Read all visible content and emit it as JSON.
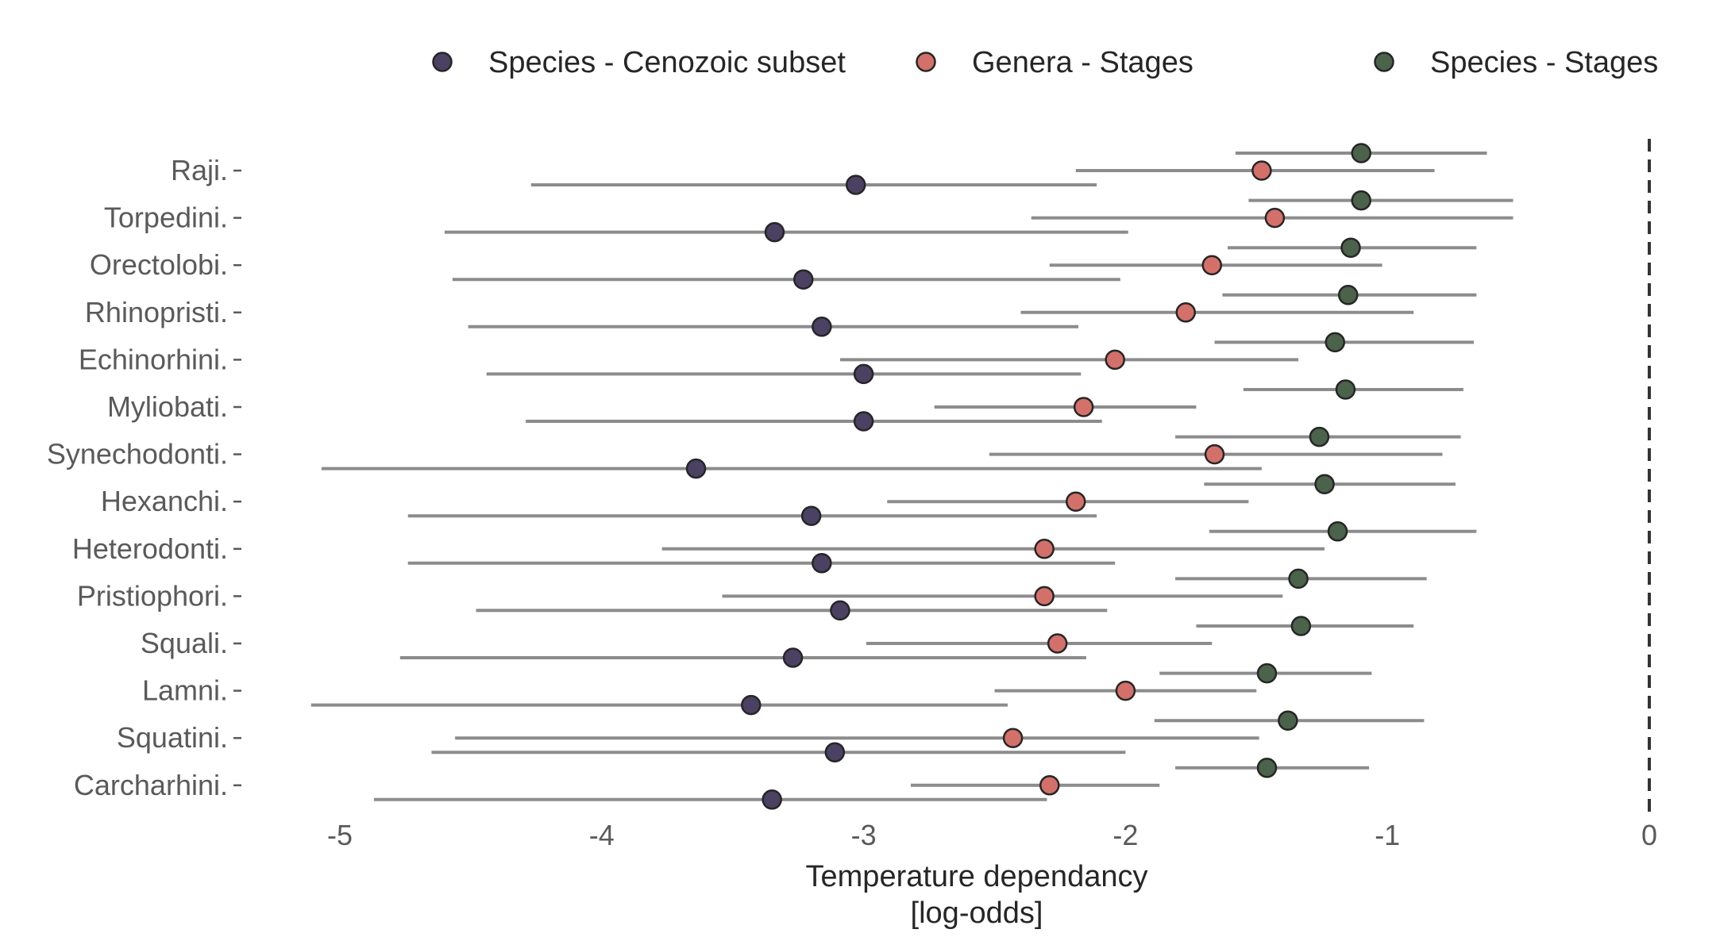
{
  "chart_data": {
    "type": "scatter",
    "subtype": "forest-plot",
    "title": "",
    "xlabel_lines": [
      "Temperature dependancy",
      "[log-odds]"
    ],
    "ylabel": "",
    "xlim": [
      -5.25,
      0.05
    ],
    "xticks": [
      -5,
      -4,
      -3,
      -2,
      -1,
      0
    ],
    "reference_line_x": 0,
    "grid": false,
    "legend_position": "top",
    "categories": [
      "Raji.",
      "Torpedini.",
      "Orectolobi.",
      "Rhinopristi.",
      "Echinorhini.",
      "Myliobati.",
      "Synechodonti.",
      "Hexanchi.",
      "Heterodonti.",
      "Pristiophori.",
      "Squali.",
      "Lamni.",
      "Squatini.",
      "Carcharhini."
    ],
    "series": [
      {
        "name": "Species - Cenozoic subset",
        "color": "#4a4163",
        "estimates": [
          -3.03,
          -3.34,
          -3.23,
          -3.16,
          -3.0,
          -3.0,
          -3.64,
          -3.2,
          -3.16,
          -3.09,
          -3.27,
          -3.43,
          -3.11,
          -3.35
        ],
        "lower": [
          -4.27,
          -4.6,
          -4.57,
          -4.51,
          -4.44,
          -4.29,
          -5.07,
          -4.74,
          -4.74,
          -4.48,
          -4.77,
          -5.11,
          -4.65,
          -4.87
        ],
        "upper": [
          -2.11,
          -1.99,
          -2.02,
          -2.18,
          -2.17,
          -2.09,
          -1.48,
          -2.11,
          -2.04,
          -2.07,
          -2.15,
          -2.45,
          -2.0,
          -2.3
        ]
      },
      {
        "name": "Genera - Stages",
        "color": "#d4706a",
        "estimates": [
          -1.48,
          -1.43,
          -1.67,
          -1.77,
          -2.04,
          -2.16,
          -1.66,
          -2.19,
          -2.31,
          -2.31,
          -2.26,
          -2.0,
          -2.43,
          -2.29
        ],
        "lower": [
          -2.19,
          -2.36,
          -2.29,
          -2.4,
          -3.09,
          -2.73,
          -2.52,
          -2.91,
          -3.77,
          -3.54,
          -2.99,
          -2.5,
          -4.56,
          -2.82
        ],
        "upper": [
          -0.82,
          -0.52,
          -1.02,
          -0.9,
          -1.34,
          -1.73,
          -0.79,
          -1.53,
          -1.24,
          -1.4,
          -1.67,
          -1.5,
          -1.49,
          -1.87
        ]
      },
      {
        "name": "Species - Stages",
        "color": "#4a634a",
        "estimates": [
          -1.1,
          -1.1,
          -1.14,
          -1.15,
          -1.2,
          -1.16,
          -1.26,
          -1.24,
          -1.19,
          -1.34,
          -1.33,
          -1.46,
          -1.38,
          -1.46
        ],
        "lower": [
          -1.58,
          -1.53,
          -1.61,
          -1.63,
          -1.66,
          -1.55,
          -1.81,
          -1.7,
          -1.68,
          -1.81,
          -1.73,
          -1.87,
          -1.89,
          -1.81
        ],
        "upper": [
          -0.62,
          -0.52,
          -0.66,
          -0.66,
          -0.67,
          -0.71,
          -0.72,
          -0.74,
          -0.66,
          -0.85,
          -0.9,
          -1.06,
          -0.86,
          -1.07
        ]
      }
    ]
  }
}
